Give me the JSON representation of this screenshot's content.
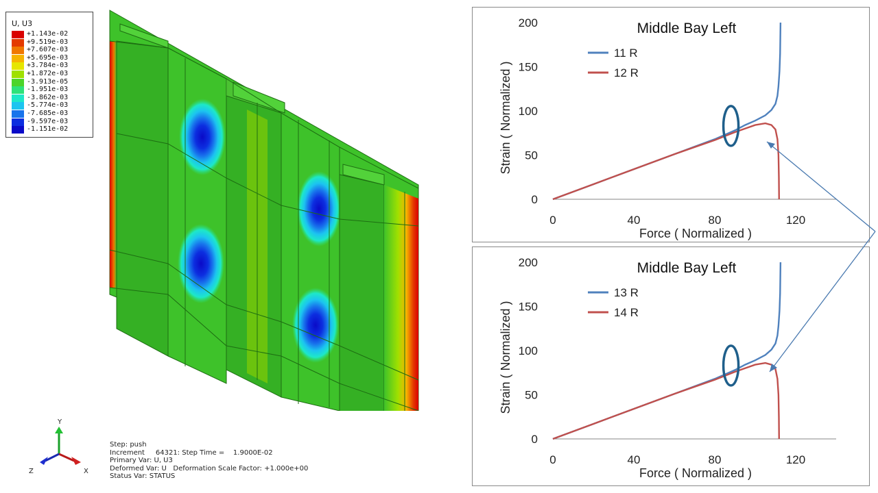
{
  "legend": {
    "title": "U, U3",
    "entries": [
      {
        "label": "+1.143e-02",
        "color": "#d90000"
      },
      {
        "label": "+9.519e-03",
        "color": "#e43a00"
      },
      {
        "label": "+7.607e-03",
        "color": "#f07800"
      },
      {
        "label": "+5.695e-03",
        "color": "#f6b400"
      },
      {
        "label": "+3.784e-03",
        "color": "#e6e600"
      },
      {
        "label": "+1.872e-03",
        "color": "#9fe000"
      },
      {
        "label": "-3.913e-05",
        "color": "#4cd42a"
      },
      {
        "label": "-1.951e-03",
        "color": "#2ee27a"
      },
      {
        "label": "-3.862e-03",
        "color": "#1de8c8"
      },
      {
        "label": "-5.774e-03",
        "color": "#1cc4f0"
      },
      {
        "label": "-7.685e-03",
        "color": "#1874ec"
      },
      {
        "label": "-9.597e-03",
        "color": "#0c2ee0"
      },
      {
        "label": "-1.151e-02",
        "color": "#0a0ac8"
      }
    ]
  },
  "axes_triad": {
    "y": "Y",
    "x": "X",
    "z": "Z"
  },
  "step_info": {
    "line1": "Step: push",
    "line2": "Increment     64321: Step Time =    1.9000E-02",
    "line3": "Primary Var: U, U3",
    "line4": "Deformed Var: U   Deformation Scale Factor: +1.000e+00",
    "line5": "Status Var: STATUS"
  },
  "colors": {
    "series_blue": "#4f81bd",
    "series_red": "#c0504d",
    "ellipse": "#1f5f8b",
    "arrow": "#4a7ab0",
    "model_green": "#3ec22a"
  },
  "chart_data": [
    {
      "type": "line",
      "title": "Middle Bay Left",
      "xlabel": "Force ( Normalized )",
      "ylabel": "Strain ( Normalized )",
      "xlim": [
        0,
        140
      ],
      "ylim": [
        0,
        200
      ],
      "xticks": [
        "0",
        "40",
        "80",
        "120"
      ],
      "yticks": [
        "0",
        "50",
        "100",
        "150",
        "200"
      ],
      "legend_position": "top-left",
      "series": [
        {
          "name": "11 R",
          "color": "blue",
          "points": [
            [
              0,
              0
            ],
            [
              20,
              17
            ],
            [
              40,
              34
            ],
            [
              60,
              51
            ],
            [
              80,
              68
            ],
            [
              90,
              78
            ],
            [
              95,
              84
            ],
            [
              100,
              89
            ],
            [
              105,
              95
            ],
            [
              108,
              101
            ],
            [
              110,
              108
            ],
            [
              111,
              117
            ],
            [
              111.5,
              128
            ],
            [
              112,
              145
            ],
            [
              112.3,
              165
            ],
            [
              112.5,
              200
            ]
          ]
        },
        {
          "name": "12 R",
          "color": "red",
          "points": [
            [
              0,
              0
            ],
            [
              20,
              17
            ],
            [
              40,
              34
            ],
            [
              60,
              51
            ],
            [
              80,
              67
            ],
            [
              90,
              76
            ],
            [
              95,
              80
            ],
            [
              100,
              84
            ],
            [
              105,
              86
            ],
            [
              108,
              84
            ],
            [
              110,
              79
            ],
            [
              111,
              68
            ],
            [
              111.5,
              50
            ],
            [
              111.7,
              25
            ],
            [
              111.8,
              0
            ]
          ]
        }
      ],
      "annotation": "ellipse"
    },
    {
      "type": "line",
      "title": "Middle Bay Left",
      "xlabel": "Force ( Normalized )",
      "ylabel": "Strain ( Normalized )",
      "xlim": [
        0,
        140
      ],
      "ylim": [
        0,
        200
      ],
      "xticks": [
        "0",
        "40",
        "80",
        "120"
      ],
      "yticks": [
        "0",
        "50",
        "100",
        "150",
        "200"
      ],
      "legend_position": "top-left",
      "series": [
        {
          "name": "13 R",
          "color": "blue",
          "points": [
            [
              0,
              0
            ],
            [
              20,
              17
            ],
            [
              40,
              34
            ],
            [
              60,
              51
            ],
            [
              80,
              68
            ],
            [
              90,
              78
            ],
            [
              95,
              84
            ],
            [
              100,
              89
            ],
            [
              105,
              95
            ],
            [
              108,
              101
            ],
            [
              110,
              108
            ],
            [
              111,
              117
            ],
            [
              111.5,
              128
            ],
            [
              112,
              145
            ],
            [
              112.3,
              165
            ],
            [
              112.5,
              200
            ]
          ]
        },
        {
          "name": "14 R",
          "color": "red",
          "points": [
            [
              0,
              0
            ],
            [
              20,
              17
            ],
            [
              40,
              34
            ],
            [
              60,
              51
            ],
            [
              80,
              67
            ],
            [
              90,
              76
            ],
            [
              95,
              80
            ],
            [
              100,
              84
            ],
            [
              105,
              86
            ],
            [
              108,
              84
            ],
            [
              110,
              79
            ],
            [
              111,
              68
            ],
            [
              111.5,
              50
            ],
            [
              111.7,
              25
            ],
            [
              111.8,
              0
            ]
          ]
        }
      ],
      "annotation": "ellipse"
    }
  ]
}
